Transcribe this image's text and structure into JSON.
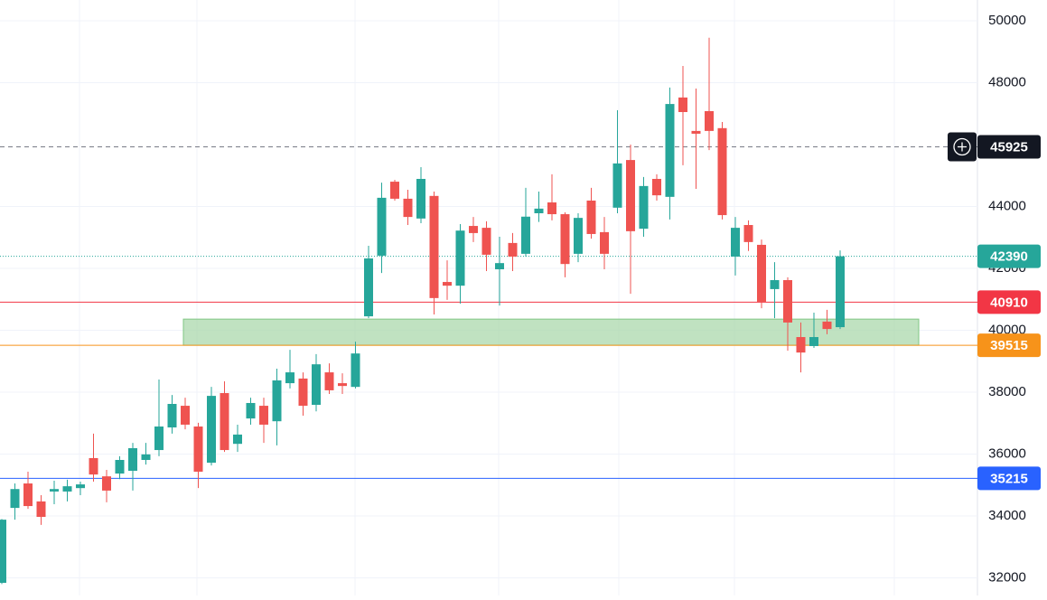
{
  "chart_data": {
    "type": "candlestick",
    "up_color": "#26a69a",
    "down_color": "#ef5350",
    "ylim": [
      31431,
      50670
    ],
    "yticks": [
      32000,
      34000,
      36000,
      38000,
      40000,
      42000,
      44000,
      48000,
      50000
    ],
    "grid": true,
    "candles": {
      "open": [
        31840,
        34260,
        35050,
        34470,
        34790,
        34790,
        34900,
        35870,
        35280,
        35370,
        35460,
        35810,
        36130,
        36860,
        37560,
        36890,
        35720,
        37970,
        36330,
        37150,
        37560,
        37060,
        38290,
        38440,
        37590,
        38640,
        38290,
        38170,
        40450,
        42410,
        44800,
        44250,
        43610,
        44340,
        41560,
        41440,
        43370,
        43310,
        41970,
        42820,
        42470,
        43780,
        44130,
        43750,
        42470,
        44190,
        43170,
        43960,
        45500,
        43280,
        44890,
        44310,
        47520,
        46440,
        47080,
        46530,
        42380,
        43400,
        42760,
        41330,
        41620,
        39780,
        39490,
        40280,
        40100
      ],
      "high": [
        33900,
        35050,
        35430,
        34670,
        35140,
        35170,
        35110,
        36660,
        35490,
        35930,
        36360,
        36360,
        38410,
        37910,
        37820,
        37010,
        38170,
        38350,
        36950,
        37820,
        37820,
        38760,
        39370,
        38640,
        39230,
        38930,
        38610,
        39630,
        42730,
        44770,
        44860,
        44540,
        45270,
        44480,
        42260,
        43430,
        43660,
        43520,
        43020,
        43140,
        44600,
        44480,
        45040,
        43810,
        43780,
        44600,
        43660,
        47110,
        46000,
        44950,
        45040,
        47840,
        48540,
        47810,
        49450,
        46730,
        43660,
        43550,
        42930,
        42200,
        41710,
        40250,
        40570,
        40660,
        42580
      ],
      "low": [
        31800,
        33880,
        34230,
        33710,
        34380,
        34470,
        34670,
        35110,
        34440,
        35190,
        34820,
        35660,
        35930,
        36660,
        36800,
        34900,
        35630,
        36070,
        36070,
        36950,
        36360,
        36280,
        38120,
        37240,
        37380,
        37940,
        37940,
        38120,
        40390,
        41850,
        44190,
        43400,
        43460,
        40510,
        40980,
        40860,
        42850,
        41910,
        40800,
        41910,
        42380,
        43500,
        43550,
        41710,
        42200,
        42960,
        41970,
        43780,
        41180,
        43020,
        44190,
        43580,
        45330,
        44570,
        45820,
        43580,
        41770,
        42560,
        40710,
        40390,
        39340,
        38640,
        39430,
        39870,
        40040
      ],
      "close": [
        33880,
        34870,
        34320,
        33970,
        34870,
        34960,
        35020,
        35340,
        34820,
        35810,
        36190,
        35990,
        36890,
        37620,
        36950,
        35430,
        37880,
        36130,
        36630,
        37650,
        36950,
        38380,
        38640,
        37560,
        38900,
        38060,
        38200,
        39250,
        42320,
        44280,
        44250,
        43660,
        44890,
        41040,
        41440,
        43220,
        43140,
        42440,
        42170,
        42380,
        43670,
        43930,
        43750,
        42140,
        43630,
        43110,
        42470,
        45390,
        43200,
        44660,
        44360,
        47310,
        47050,
        46350,
        46440,
        43720,
        43310,
        42850,
        40920,
        41620,
        40250,
        39280,
        39780,
        40040,
        42390
      ]
    },
    "zone": {
      "low": 39515,
      "high": 40360,
      "color": "#a5d6a7"
    },
    "price_lines": [
      {
        "value": 45925,
        "color": "#787b86",
        "label_color": "#131722",
        "style": "dashed"
      },
      {
        "value": 42390,
        "color": "#26a69a",
        "label_color": "#26a69a",
        "style": "dotted"
      },
      {
        "value": 40910,
        "color": "#f23645",
        "label_color": "#f23645",
        "style": "solid"
      },
      {
        "value": 39515,
        "color": "#f7931a",
        "label_color": "#f7931a",
        "style": "solid"
      },
      {
        "value": 35215,
        "color": "#2962ff",
        "label_color": "#2962ff",
        "style": "solid"
      }
    ]
  }
}
